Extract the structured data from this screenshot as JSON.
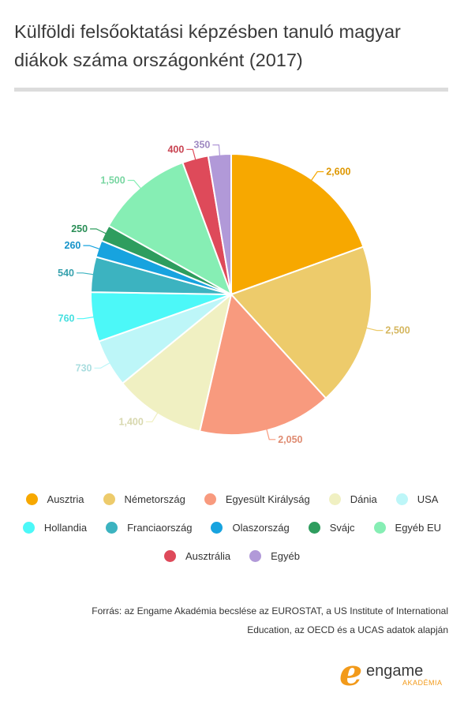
{
  "title": "Külföldi felsőoktatási képzésben tanuló magyar diákok száma országonként (2017)",
  "chart_data": {
    "type": "pie",
    "title": "Külföldi felsőoktatási képzésben tanuló magyar diákok száma országonként (2017)",
    "slices": [
      {
        "label": "Ausztria",
        "value": 2600,
        "display": "2,600",
        "color": "#F7A800"
      },
      {
        "label": "Németország",
        "value": 2500,
        "display": "2,500",
        "color": "#EDCB6B"
      },
      {
        "label": "Egyesült Királyság",
        "value": 2050,
        "display": "2,050",
        "color": "#F89A7E"
      },
      {
        "label": "Dánia",
        "value": 1400,
        "display": "1,400",
        "color": "#F0F0C2"
      },
      {
        "label": "USA",
        "value": 730,
        "display": "730",
        "color": "#BDF6F8"
      },
      {
        "label": "Hollandia",
        "value": 760,
        "display": "760",
        "color": "#4CF8F8"
      },
      {
        "label": "Franciaország",
        "value": 540,
        "display": "540",
        "color": "#3CB3C0"
      },
      {
        "label": "Olaszország",
        "value": 260,
        "display": "260",
        "color": "#17A3DF"
      },
      {
        "label": "Svájc",
        "value": 250,
        "display": "250",
        "color": "#2E9D5E"
      },
      {
        "label": "Egyéb EU",
        "value": 1500,
        "display": "1,500",
        "color": "#86EEB4"
      },
      {
        "label": "Ausztrália",
        "value": 400,
        "display": "400",
        "color": "#DE4A5A"
      },
      {
        "label": "Egyéb",
        "value": 350,
        "display": "350",
        "color": "#B199D8"
      }
    ],
    "legend_position": "bottom"
  },
  "source": {
    "line1": "Forrás: az Engame Akadémia becslése az EUROSTAT, a US Institute of International",
    "line2": "Education, az OECD és a UCAS adatok alapján"
  },
  "logo": {
    "letter": "e",
    "word": "engame",
    "sub": "AKADÉMIA",
    "color": "#F29A1A"
  }
}
